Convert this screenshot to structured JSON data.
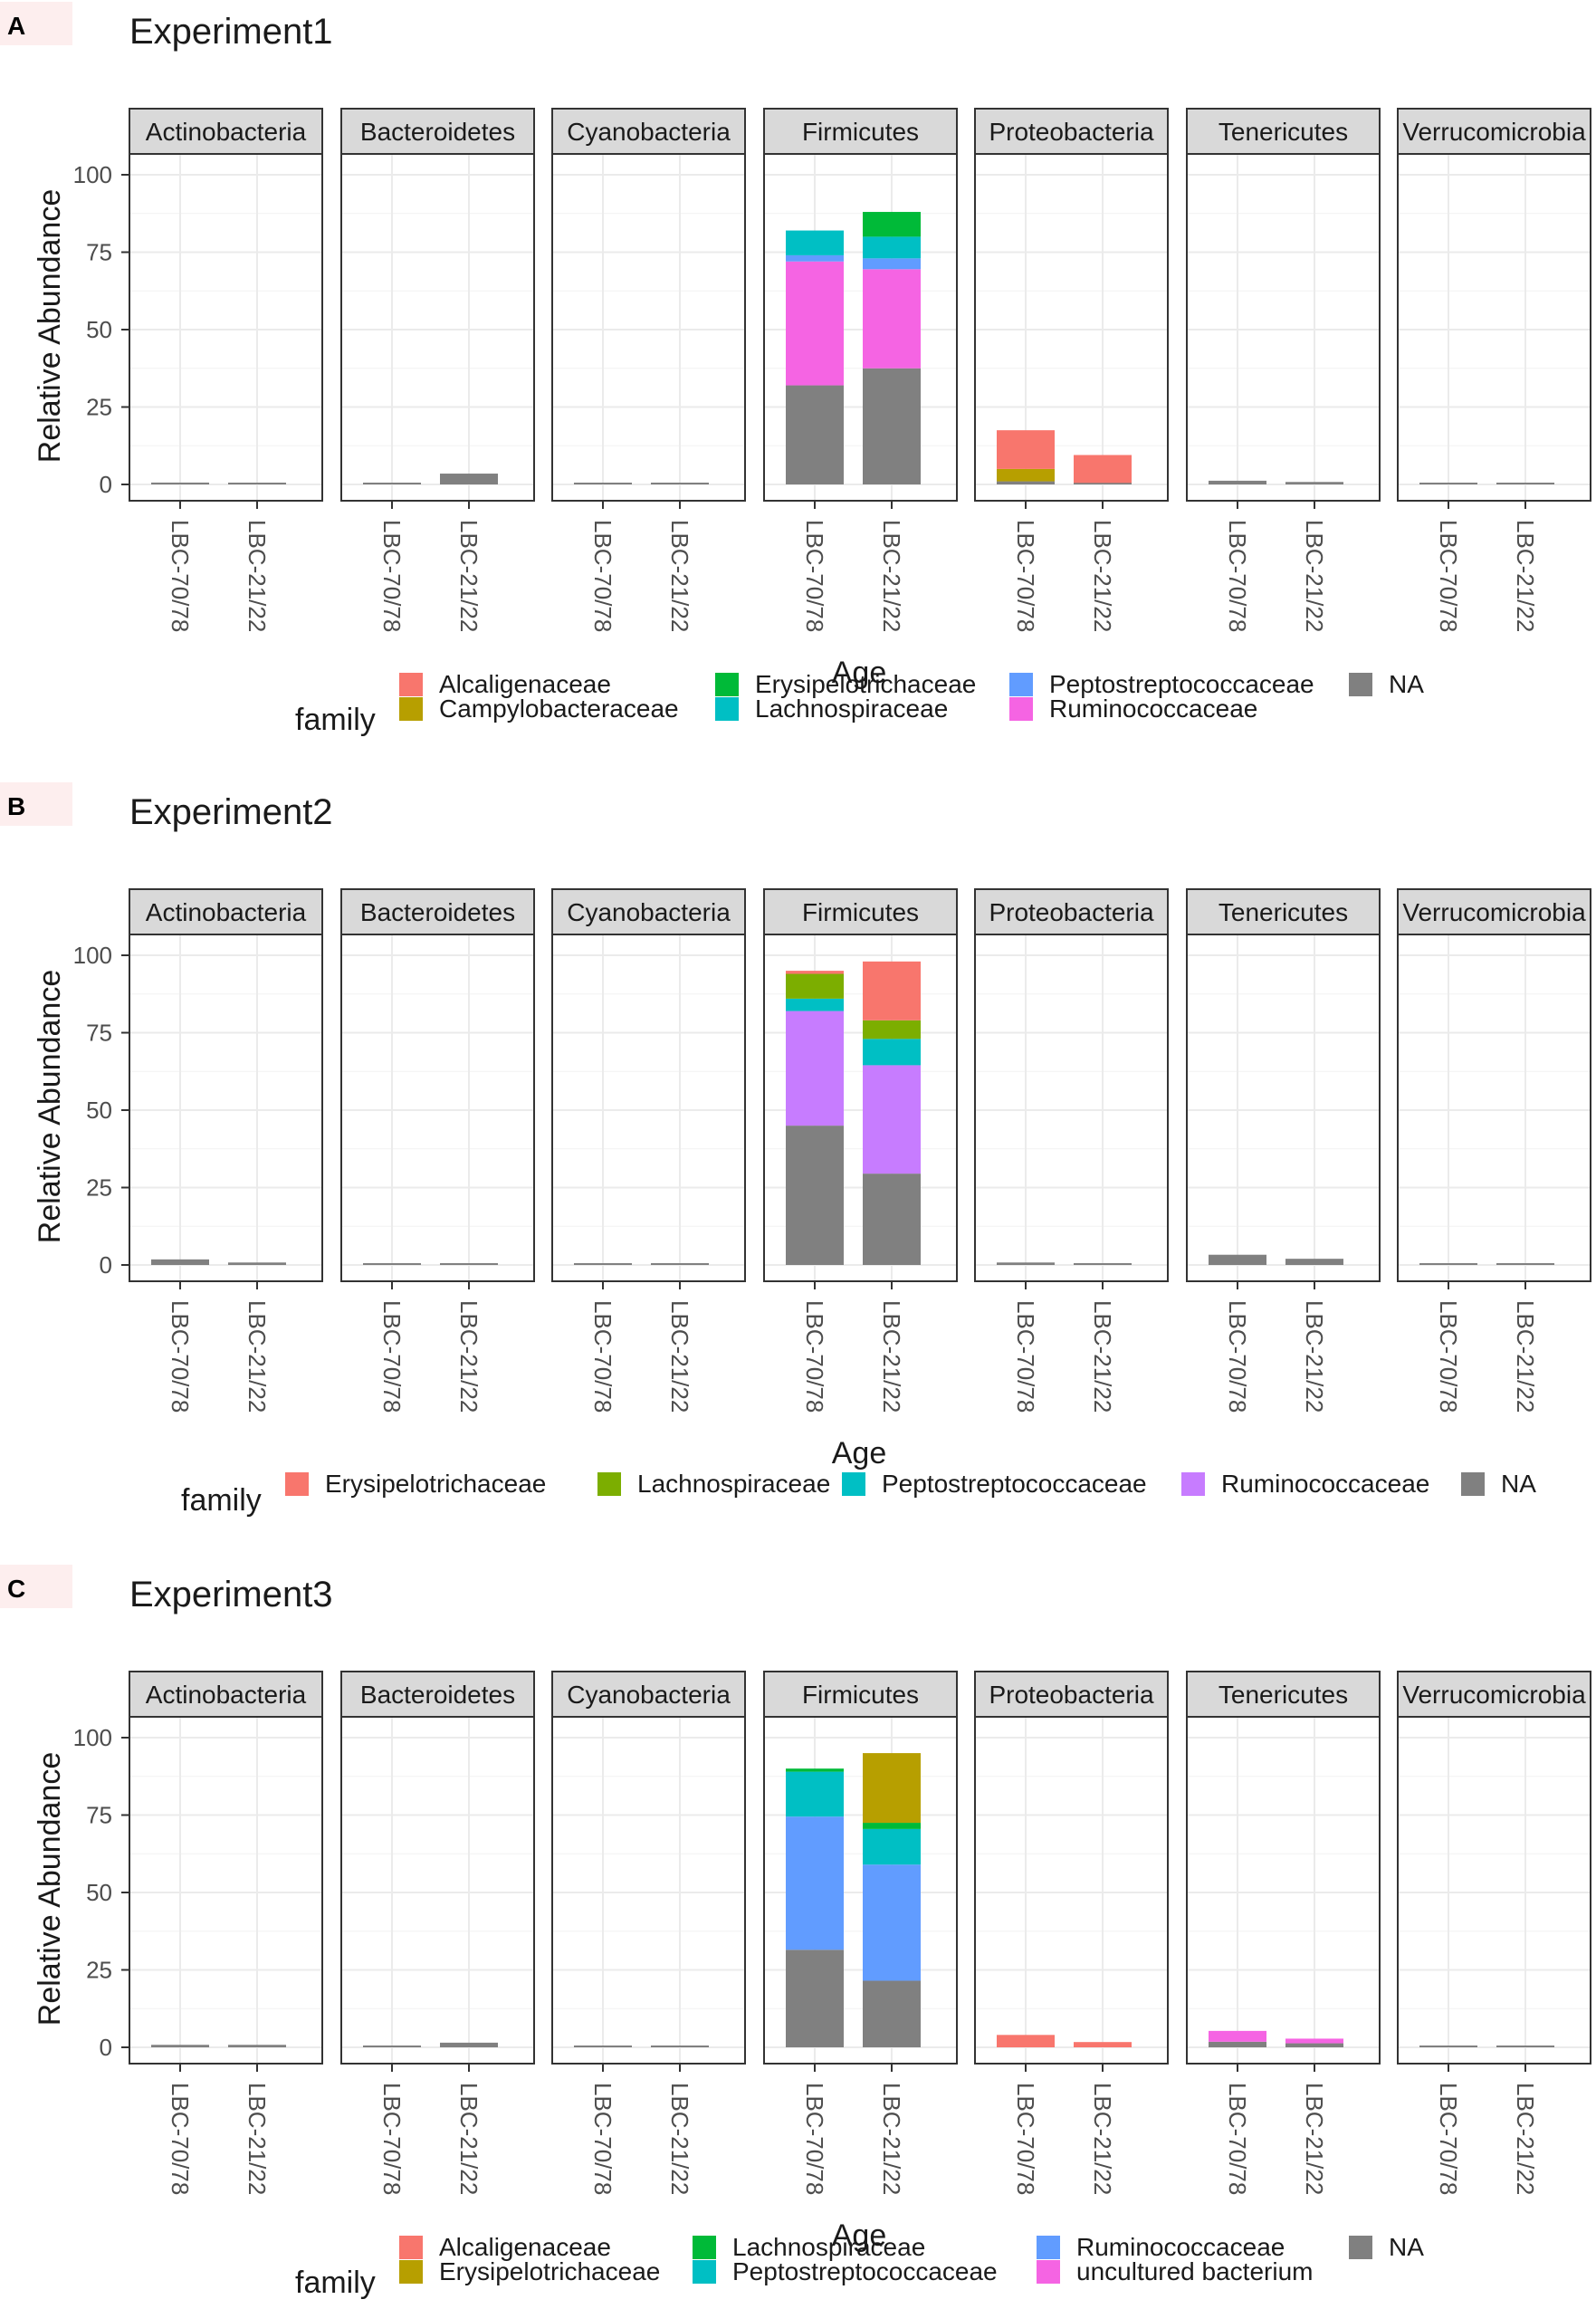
{
  "chart_data": [
    {
      "type": "bar",
      "stacked": true,
      "panel_tag": "A",
      "title": "Experiment1",
      "xlabel": "Age",
      "ylabel": "Relative Abundance",
      "ylim": [
        0,
        105
      ],
      "yticks": [
        "0",
        "25",
        "50",
        "75",
        "100"
      ],
      "categories": [
        "LBC-70/78",
        "LBC-21/22"
      ],
      "facets": [
        "Actinobacteria",
        "Bacteroidetes",
        "Cyanobacteria",
        "Firmicutes",
        "Proteobacteria",
        "Tenericutes",
        "Verrucomicrobia"
      ],
      "legend_title": "family",
      "legend": [
        {
          "name": "Alcaligenaceae",
          "color": "#F8766D"
        },
        {
          "name": "Campylobacteraceae",
          "color": "#B79F00"
        },
        {
          "name": "Erysipelotrichaceae",
          "color": "#00BA38"
        },
        {
          "name": "Lachnospiraceae",
          "color": "#00BFC4"
        },
        {
          "name": "Peptostreptococcaceae",
          "color": "#619CFF"
        },
        {
          "name": "Ruminococcaceae",
          "color": "#F564E3"
        },
        {
          "name": "NA",
          "color": "#808080"
        }
      ],
      "data": {
        "Actinobacteria": [
          [
            {
              "family": "NA",
              "value": 0.6
            }
          ],
          [
            {
              "family": "NA",
              "value": 0.3
            }
          ]
        ],
        "Bacteroidetes": [
          [
            {
              "family": "NA",
              "value": 0.3
            }
          ],
          [
            {
              "family": "NA",
              "value": 3.5
            }
          ]
        ],
        "Cyanobacteria": [
          [
            {
              "family": "NA",
              "value": 0.2
            }
          ],
          [
            {
              "family": "NA",
              "value": 0.2
            }
          ]
        ],
        "Firmicutes": [
          [
            {
              "family": "NA",
              "value": 32
            },
            {
              "family": "Ruminococcaceae",
              "value": 40
            },
            {
              "family": "Peptostreptococcaceae",
              "value": 2
            },
            {
              "family": "Lachnospiraceae",
              "value": 8
            }
          ],
          [
            {
              "family": "NA",
              "value": 37.5
            },
            {
              "family": "Ruminococcaceae",
              "value": 32
            },
            {
              "family": "Peptostreptococcaceae",
              "value": 3.5
            },
            {
              "family": "Lachnospiraceae",
              "value": 7
            },
            {
              "family": "Erysipelotrichaceae",
              "value": 8
            }
          ]
        ],
        "Proteobacteria": [
          [
            {
              "family": "NA",
              "value": 1
            },
            {
              "family": "Campylobacteraceae",
              "value": 4
            },
            {
              "family": "Alcaligenaceae",
              "value": 12.5
            }
          ],
          [
            {
              "family": "NA",
              "value": 0.5
            },
            {
              "family": "Alcaligenaceae",
              "value": 9
            }
          ]
        ],
        "Tenericutes": [
          [
            {
              "family": "NA",
              "value": 1.2
            }
          ],
          [
            {
              "family": "NA",
              "value": 0.8
            }
          ]
        ],
        "Verrucomicrobia": [
          [
            {
              "family": "NA",
              "value": 0.2
            }
          ],
          [
            {
              "family": "NA",
              "value": 0.2
            }
          ]
        ]
      }
    },
    {
      "type": "bar",
      "stacked": true,
      "panel_tag": "B",
      "title": "Experiment2",
      "xlabel": "Age",
      "ylabel": "Relative Abundance",
      "ylim": [
        0,
        105
      ],
      "yticks": [
        "0",
        "25",
        "50",
        "75",
        "100"
      ],
      "categories": [
        "LBC-70/78",
        "LBC-21/22"
      ],
      "facets": [
        "Actinobacteria",
        "Bacteroidetes",
        "Cyanobacteria",
        "Firmicutes",
        "Proteobacteria",
        "Tenericutes",
        "Verrucomicrobia"
      ],
      "legend_title": "family",
      "legend": [
        {
          "name": "Erysipelotrichaceae",
          "color": "#F8766D"
        },
        {
          "name": "Lachnospiraceae",
          "color": "#7CAE00"
        },
        {
          "name": "Peptostreptococcaceae",
          "color": "#00BFC4"
        },
        {
          "name": "Ruminococcaceae",
          "color": "#C77CFF"
        },
        {
          "name": "NA",
          "color": "#808080"
        }
      ],
      "data": {
        "Actinobacteria": [
          [
            {
              "family": "NA",
              "value": 1.8
            }
          ],
          [
            {
              "family": "NA",
              "value": 0.8
            }
          ]
        ],
        "Bacteroidetes": [
          [
            {
              "family": "NA",
              "value": 0.4
            }
          ],
          [
            {
              "family": "NA",
              "value": 0.4
            }
          ]
        ],
        "Cyanobacteria": [
          [
            {
              "family": "NA",
              "value": 0.2
            }
          ],
          [
            {
              "family": "NA",
              "value": 0.2
            }
          ]
        ],
        "Firmicutes": [
          [
            {
              "family": "NA",
              "value": 45
            },
            {
              "family": "Ruminococcaceae",
              "value": 37
            },
            {
              "family": "Peptostreptococcaceae",
              "value": 4
            },
            {
              "family": "Lachnospiraceae",
              "value": 8
            },
            {
              "family": "Erysipelotrichaceae",
              "value": 1
            }
          ],
          [
            {
              "family": "NA",
              "value": 29.5
            },
            {
              "family": "Ruminococcaceae",
              "value": 35
            },
            {
              "family": "Peptostreptococcaceae",
              "value": 8.5
            },
            {
              "family": "Lachnospiraceae",
              "value": 6
            },
            {
              "family": "Erysipelotrichaceae",
              "value": 19
            }
          ]
        ],
        "Proteobacteria": [
          [
            {
              "family": "NA",
              "value": 0.8
            }
          ],
          [
            {
              "family": "NA",
              "value": 0.4
            }
          ]
        ],
        "Tenericutes": [
          [
            {
              "family": "NA",
              "value": 3.3
            }
          ],
          [
            {
              "family": "NA",
              "value": 2
            }
          ]
        ],
        "Verrucomicrobia": [
          [
            {
              "family": "NA",
              "value": 0.2
            }
          ],
          [
            {
              "family": "NA",
              "value": 0.2
            }
          ]
        ]
      }
    },
    {
      "type": "bar",
      "stacked": true,
      "panel_tag": "C",
      "title": "Experiment3",
      "xlabel": "Age",
      "ylabel": "Relative Abundance",
      "ylim": [
        0,
        105
      ],
      "yticks": [
        "0",
        "25",
        "50",
        "75",
        "100"
      ],
      "categories": [
        "LBC-70/78",
        "LBC-21/22"
      ],
      "facets": [
        "Actinobacteria",
        "Bacteroidetes",
        "Cyanobacteria",
        "Firmicutes",
        "Proteobacteria",
        "Tenericutes",
        "Verrucomicrobia"
      ],
      "legend_title": "family",
      "legend": [
        {
          "name": "Alcaligenaceae",
          "color": "#F8766D"
        },
        {
          "name": "Erysipelotrichaceae",
          "color": "#B79F00"
        },
        {
          "name": "Lachnospiraceae",
          "color": "#00BA38"
        },
        {
          "name": "Peptostreptococcaceae",
          "color": "#00BFC4"
        },
        {
          "name": "Ruminococcaceae",
          "color": "#619CFF"
        },
        {
          "name": "uncultured bacterium",
          "color": "#F564E3"
        },
        {
          "name": "NA",
          "color": "#808080"
        }
      ],
      "data": {
        "Actinobacteria": [
          [
            {
              "family": "NA",
              "value": 0.8
            }
          ],
          [
            {
              "family": "NA",
              "value": 0.8
            }
          ]
        ],
        "Bacteroidetes": [
          [
            {
              "family": "NA",
              "value": 0.5
            }
          ],
          [
            {
              "family": "NA",
              "value": 1.5
            }
          ]
        ],
        "Cyanobacteria": [
          [
            {
              "family": "NA",
              "value": 0.2
            }
          ],
          [
            {
              "family": "NA",
              "value": 0.2
            }
          ]
        ],
        "Firmicutes": [
          [
            {
              "family": "NA",
              "value": 31.5
            },
            {
              "family": "Ruminococcaceae",
              "value": 43
            },
            {
              "family": "Peptostreptococcaceae",
              "value": 14.5
            },
            {
              "family": "Lachnospiraceae",
              "value": 1
            }
          ],
          [
            {
              "family": "NA",
              "value": 21.5
            },
            {
              "family": "Ruminococcaceae",
              "value": 37.5
            },
            {
              "family": "Peptostreptococcaceae",
              "value": 11.5
            },
            {
              "family": "Lachnospiraceae",
              "value": 2
            },
            {
              "family": "Erysipelotrichaceae",
              "value": 22.5
            }
          ]
        ],
        "Proteobacteria": [
          [
            {
              "family": "Alcaligenaceae",
              "value": 4
            }
          ],
          [
            {
              "family": "Alcaligenaceae",
              "value": 1.7
            }
          ]
        ],
        "Tenericutes": [
          [
            {
              "family": "NA",
              "value": 1.8
            },
            {
              "family": "uncultured bacterium",
              "value": 3.5
            }
          ],
          [
            {
              "family": "NA",
              "value": 1.3
            },
            {
              "family": "uncultured bacterium",
              "value": 1.5
            }
          ]
        ],
        "Verrucomicrobia": [
          [
            {
              "family": "NA",
              "value": 0.2
            }
          ],
          [
            {
              "family": "NA",
              "value": 0.2
            }
          ]
        ]
      }
    }
  ]
}
